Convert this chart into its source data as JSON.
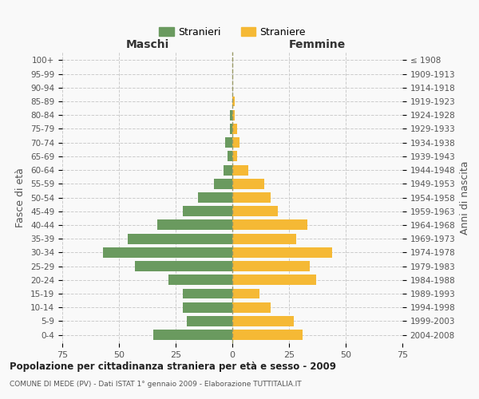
{
  "age_groups": [
    "0-4",
    "5-9",
    "10-14",
    "15-19",
    "20-24",
    "25-29",
    "30-34",
    "35-39",
    "40-44",
    "45-49",
    "50-54",
    "55-59",
    "60-64",
    "65-69",
    "70-74",
    "75-79",
    "80-84",
    "85-89",
    "90-94",
    "95-99",
    "100+"
  ],
  "birth_years": [
    "2004-2008",
    "1999-2003",
    "1994-1998",
    "1989-1993",
    "1984-1988",
    "1979-1983",
    "1974-1978",
    "1969-1973",
    "1964-1968",
    "1959-1963",
    "1954-1958",
    "1949-1953",
    "1944-1948",
    "1939-1943",
    "1934-1938",
    "1929-1933",
    "1924-1928",
    "1919-1923",
    "1914-1918",
    "1909-1913",
    "≤ 1908"
  ],
  "males": [
    35,
    20,
    22,
    22,
    28,
    43,
    57,
    46,
    33,
    22,
    15,
    8,
    4,
    2,
    3,
    1,
    1,
    0,
    0,
    0,
    0
  ],
  "females": [
    31,
    27,
    17,
    12,
    37,
    34,
    44,
    28,
    33,
    20,
    17,
    14,
    7,
    2,
    3,
    2,
    1,
    1,
    0,
    0,
    0
  ],
  "male_color": "#6a9a5f",
  "female_color": "#f5b935",
  "background_color": "#f9f9f9",
  "grid_color": "#cccccc",
  "title": "Popolazione per cittadinanza straniera per età e sesso - 2009",
  "subtitle": "COMUNE DI MEDE (PV) - Dati ISTAT 1° gennaio 2009 - Elaborazione TUTTITALIA.IT",
  "ylabel_left": "Fasce di età",
  "ylabel_right": "Anni di nascita",
  "xlabel_left": "Maschi",
  "xlabel_right": "Femmine",
  "legend_male": "Stranieri",
  "legend_female": "Straniere",
  "xlim": 75
}
